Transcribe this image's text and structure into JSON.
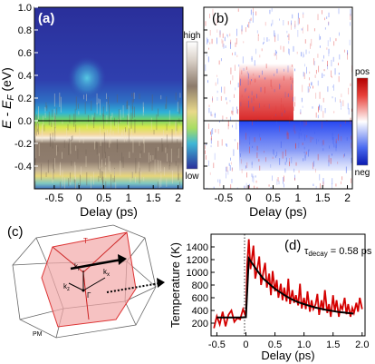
{
  "figure": {
    "panel_a": {
      "label": "(a)",
      "ylabel": "E - E",
      "ylabel_sub": "F",
      "ylabel_unit": " (eV)",
      "xlabel": "Delay (ps)",
      "yticks": [
        "0.8",
        "0.6",
        "0.4",
        "0.2",
        "0.0",
        "-0.2",
        "-0.4"
      ],
      "extra_ytick": "1.0",
      "xticks": [
        "-0.5",
        "0",
        "0.5",
        "1",
        "1.5",
        "2"
      ],
      "colorbar": {
        "high": "high",
        "low": "low"
      }
    },
    "panel_b": {
      "label": "(b)",
      "xlabel": "Delay (ps)",
      "xticks": [
        "-0.5",
        "0",
        "0.5",
        "1",
        "1.5",
        "2"
      ],
      "colorbar": {
        "pos": "pos",
        "neg": "neg"
      }
    },
    "panel_c": {
      "label": "(c)",
      "labels": {
        "top": "T",
        "kz": "k",
        "kz_sub": "z",
        "kx": "k",
        "kx_sub": "x",
        "kz2": "k",
        "kz2_sub": "Γ",
        "gamma": "Γ",
        "bottom_left": "PM"
      }
    },
    "panel_d": {
      "label": "(d)",
      "ylabel": "Temperature (K)",
      "xlabel": "Delay (ps)",
      "annotation_tau": "τ",
      "annotation_sub": "decay",
      "annotation_val": " = 0.58 ps",
      "yticks": [
        "1400",
        "1200",
        "1000",
        "800",
        "600",
        "400",
        "200"
      ],
      "xticks": [
        "-0.5",
        "0",
        "0.5",
        "1.0",
        "1.5",
        "2.0"
      ]
    },
    "colors": {
      "data_line": "#d40000",
      "fit_line": "#000000",
      "pos": "#d7191c",
      "neg": "#1a3cf0"
    }
  },
  "chart_data": [
    {
      "type": "heatmap",
      "title": "(a)",
      "xlabel": "Delay (ps)",
      "ylabel": "E - EF (eV)",
      "xlim": [
        -0.9,
        2.1
      ],
      "ylim": [
        -0.6,
        1.0
      ],
      "colorbar": [
        "low",
        "high"
      ],
      "grid": false
    },
    {
      "type": "heatmap",
      "title": "(b)",
      "xlabel": "Delay (ps)",
      "xlim": [
        -0.9,
        2.1
      ],
      "ylim": [
        -0.6,
        1.0
      ],
      "colorbar": [
        "neg",
        "pos"
      ],
      "grid": false
    },
    {
      "type": "line",
      "title": "(d)",
      "xlabel": "Delay (ps)",
      "ylabel": "Temperature (K)",
      "xlim": [
        -0.6,
        2.05
      ],
      "ylim": [
        0,
        1600
      ],
      "annotations": [
        "τdecay = 0.58 ps"
      ],
      "series": [
        {
          "name": "",
          "color": "#d40000",
          "x": [
            -0.55,
            -0.5,
            -0.45,
            -0.4,
            -0.35,
            -0.3,
            -0.25,
            -0.2,
            -0.15,
            -0.1,
            -0.05,
            0.0,
            0.02,
            0.05,
            0.08,
            0.1,
            0.13,
            0.16,
            0.2,
            0.23,
            0.26,
            0.3,
            0.33,
            0.36,
            0.4,
            0.43,
            0.46,
            0.5,
            0.53,
            0.56,
            0.6,
            0.63,
            0.66,
            0.7,
            0.73,
            0.76,
            0.8,
            0.83,
            0.86,
            0.9,
            0.93,
            0.96,
            1.0,
            1.03,
            1.06,
            1.1,
            1.13,
            1.16,
            1.2,
            1.23,
            1.26,
            1.3,
            1.33,
            1.36,
            1.4,
            1.43,
            1.46,
            1.5,
            1.53,
            1.56,
            1.6,
            1.63,
            1.66,
            1.7,
            1.73,
            1.76,
            1.8,
            1.83,
            1.86,
            1.9,
            1.93,
            1.96,
            2.0
          ],
          "y": [
            120,
            310,
            180,
            380,
            150,
            330,
            400,
            220,
            280,
            260,
            420,
            300,
            1100,
            1520,
            1050,
            1200,
            1420,
            900,
            1080,
            1250,
            800,
            1000,
            1150,
            760,
            980,
            640,
            1020,
            700,
            880,
            600,
            820,
            560,
            760,
            540,
            900,
            500,
            720,
            520,
            640,
            480,
            820,
            430,
            600,
            420,
            700,
            380,
            560,
            420,
            500,
            660,
            330,
            560,
            400,
            720,
            360,
            500,
            300,
            640,
            380,
            560,
            300,
            480,
            420,
            600,
            340,
            500,
            300,
            440,
            360,
            520,
            380,
            600,
            420
          ]
        },
        {
          "name": "",
          "color": "#000000",
          "x": [
            -0.5,
            -0.4,
            -0.3,
            -0.2,
            -0.1,
            0.0,
            0.05,
            0.1,
            0.2,
            0.3,
            0.4,
            0.5,
            0.6,
            0.7,
            0.8,
            0.9,
            1.0,
            1.1,
            1.2,
            1.3,
            1.4,
            1.5,
            1.6,
            1.7,
            1.8,
            1.85
          ],
          "y": [
            290,
            290,
            290,
            290,
            290,
            295,
            1220,
            1150,
            1020,
            900,
            820,
            740,
            680,
            620,
            570,
            530,
            500,
            470,
            445,
            425,
            405,
            390,
            375,
            365,
            355,
            350
          ]
        }
      ]
    }
  ]
}
